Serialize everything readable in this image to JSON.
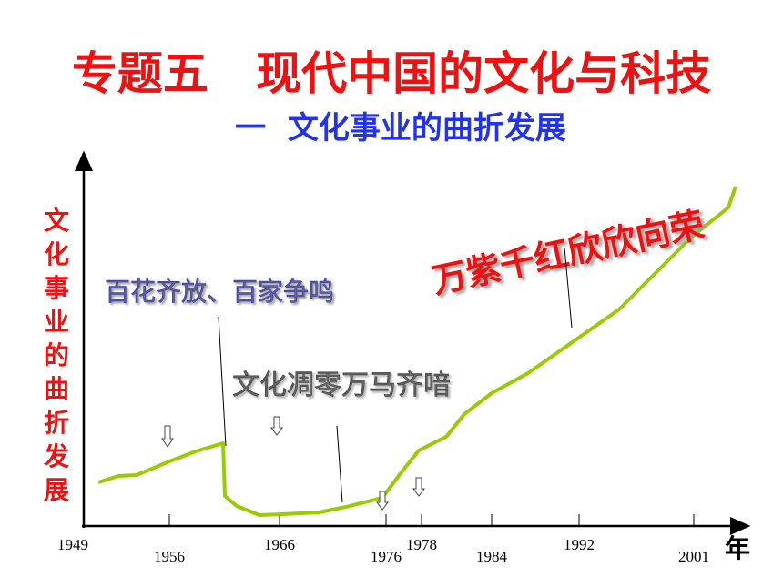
{
  "header": {
    "title": "专题五   现代中国的文化与科技",
    "subtitle": "一  文化事业的曲折发展"
  },
  "axes": {
    "y_label": "文化事业的曲折发展",
    "x_unit": "年",
    "years": [
      "1949",
      "1956",
      "1966",
      "1976",
      "1978",
      "1984",
      "1992",
      "2001"
    ]
  },
  "annotations": [
    "百花齐放、百家争鸣",
    "文化凋零万马齐喑",
    "万紫千红欣欣向荣"
  ]
}
